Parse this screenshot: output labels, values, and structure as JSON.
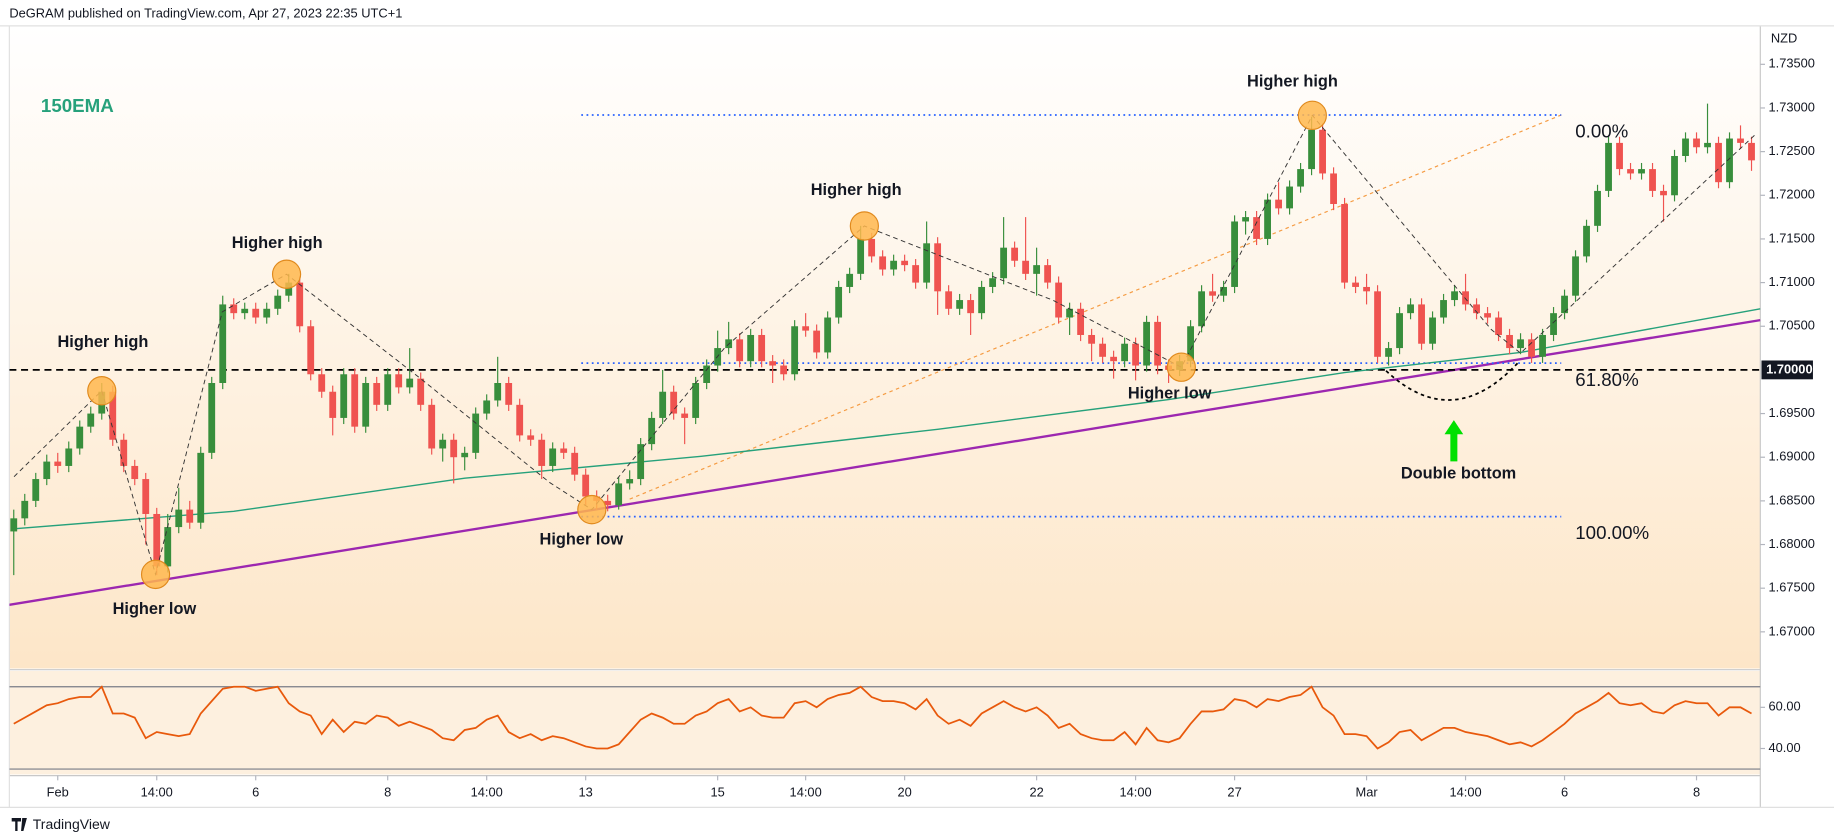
{
  "header": "DeGRAM published on TradingView.com, Apr 27, 2023 22:35 UTC+1",
  "logo": "TradingView",
  "chart_data": {
    "type": "candlestick",
    "yaxis_label": "NZD",
    "up_color": "#388e3c",
    "down_color": "#ef5350",
    "xlim": [
      -0.4,
      158.8
    ],
    "ylim": [
      1.6658,
      1.7394
    ],
    "yticks": [
      {
        "value": 1.67,
        "label": "1.67000"
      },
      {
        "value": 1.675,
        "label": "1.67500"
      },
      {
        "value": 1.68,
        "label": "1.68000"
      },
      {
        "value": 1.685,
        "label": "1.68500"
      },
      {
        "value": 1.69,
        "label": "1.69000"
      },
      {
        "value": 1.695,
        "label": "1.69500"
      },
      {
        "value": 1.705,
        "label": "1.70500"
      },
      {
        "value": 1.71,
        "label": "1.71000"
      },
      {
        "value": 1.715,
        "label": "1.71500"
      },
      {
        "value": 1.72,
        "label": "1.72000"
      },
      {
        "value": 1.725,
        "label": "1.72500"
      },
      {
        "value": 1.73,
        "label": "1.73000"
      },
      {
        "value": 1.735,
        "label": "1.73500"
      }
    ],
    "xticks": [
      {
        "value": 4,
        "label": "Feb"
      },
      {
        "value": 13,
        "label": "14:00"
      },
      {
        "value": 22,
        "label": "6"
      },
      {
        "value": 34,
        "label": "8"
      },
      {
        "value": 43,
        "label": "14:00"
      },
      {
        "value": 52,
        "label": "13"
      },
      {
        "value": 64,
        "label": "15"
      },
      {
        "value": 72,
        "label": "14:00"
      },
      {
        "value": 81,
        "label": "20"
      },
      {
        "value": 93,
        "label": "22"
      },
      {
        "value": 102,
        "label": "14:00"
      },
      {
        "value": 111,
        "label": "27"
      },
      {
        "value": 123,
        "label": "Mar"
      },
      {
        "value": 132,
        "label": "14:00"
      },
      {
        "value": 141,
        "label": "6"
      },
      {
        "value": 153,
        "label": "8"
      }
    ],
    "candles": [
      [
        1.6815,
        1.684,
        1.6765,
        1.683
      ],
      [
        1.683,
        1.6858,
        1.6822,
        1.685
      ],
      [
        1.685,
        1.6882,
        1.6843,
        1.6875
      ],
      [
        1.6875,
        1.6903,
        1.6868,
        1.6895
      ],
      [
        1.6895,
        1.6905,
        1.6882,
        1.689
      ],
      [
        1.689,
        1.6918,
        1.6883,
        1.691
      ],
      [
        1.691,
        1.6942,
        1.6903,
        1.6935
      ],
      [
        1.6935,
        1.6958,
        1.6928,
        1.695
      ],
      [
        1.695,
        1.6985,
        1.6943,
        1.6975
      ],
      [
        1.6975,
        1.6982,
        1.6913,
        1.692
      ],
      [
        1.692,
        1.6927,
        1.6883,
        1.689
      ],
      [
        1.689,
        1.6897,
        1.6868,
        1.6875
      ],
      [
        1.6875,
        1.6882,
        1.68,
        1.6835
      ],
      [
        1.6835,
        1.6842,
        1.6765,
        1.6775
      ],
      [
        1.6775,
        1.6835,
        1.6768,
        1.682
      ],
      [
        1.682,
        1.6865,
        1.6813,
        1.684
      ],
      [
        1.684,
        1.685,
        1.6818,
        1.6825
      ],
      [
        1.6825,
        1.6912,
        1.6818,
        1.6905
      ],
      [
        1.6905,
        1.6992,
        1.6898,
        1.6985
      ],
      [
        1.6985,
        1.7085,
        1.6978,
        1.7075
      ],
      [
        1.7075,
        1.7082,
        1.7058,
        1.7065
      ],
      [
        1.7065,
        1.7077,
        1.7058,
        1.707
      ],
      [
        1.707,
        1.7077,
        1.7053,
        1.706
      ],
      [
        1.706,
        1.7077,
        1.7053,
        1.707
      ],
      [
        1.707,
        1.7092,
        1.7063,
        1.7085
      ],
      [
        1.7085,
        1.711,
        1.7078,
        1.71
      ],
      [
        1.71,
        1.7107,
        1.7043,
        1.705
      ],
      [
        1.705,
        1.7057,
        1.6988,
        1.6995
      ],
      [
        1.6995,
        1.7002,
        1.6968,
        1.6975
      ],
      [
        1.6975,
        1.6982,
        1.6925,
        1.6945
      ],
      [
        1.6945,
        1.7002,
        1.6938,
        1.6995
      ],
      [
        1.6995,
        1.7002,
        1.6928,
        1.6935
      ],
      [
        1.6935,
        1.6992,
        1.6928,
        1.6985
      ],
      [
        1.6985,
        1.6992,
        1.6953,
        1.696
      ],
      [
        1.696,
        1.7002,
        1.6953,
        1.6995
      ],
      [
        1.6995,
        1.7002,
        1.6973,
        1.698
      ],
      [
        1.698,
        1.7025,
        1.6973,
        1.699
      ],
      [
        1.699,
        1.6997,
        1.6953,
        1.696
      ],
      [
        1.696,
        1.6967,
        1.6903,
        1.691
      ],
      [
        1.691,
        1.6927,
        1.6895,
        1.692
      ],
      [
        1.692,
        1.6927,
        1.687,
        1.69
      ],
      [
        1.69,
        1.6912,
        1.6885,
        1.6905
      ],
      [
        1.6905,
        1.6957,
        1.6898,
        1.695
      ],
      [
        1.695,
        1.6972,
        1.6943,
        1.6965
      ],
      [
        1.6965,
        1.7015,
        1.6958,
        1.6985
      ],
      [
        1.6985,
        1.6992,
        1.6953,
        1.696
      ],
      [
        1.696,
        1.6967,
        1.6918,
        1.6925
      ],
      [
        1.6925,
        1.6932,
        1.6913,
        1.692
      ],
      [
        1.692,
        1.6927,
        1.6875,
        1.689
      ],
      [
        1.689,
        1.6917,
        1.6883,
        1.691
      ],
      [
        1.691,
        1.6917,
        1.6898,
        1.6905
      ],
      [
        1.6905,
        1.6912,
        1.6873,
        1.688
      ],
      [
        1.688,
        1.6887,
        1.6845,
        1.6855
      ],
      [
        1.6855,
        1.6862,
        1.684,
        1.685
      ],
      [
        1.685,
        1.6857,
        1.6838,
        1.6845
      ],
      [
        1.6845,
        1.6877,
        1.684,
        1.687
      ],
      [
        1.687,
        1.6885,
        1.6863,
        1.6875
      ],
      [
        1.6875,
        1.6922,
        1.6868,
        1.6915
      ],
      [
        1.6915,
        1.6952,
        1.6908,
        1.6945
      ],
      [
        1.6945,
        1.7,
        1.6938,
        1.6975
      ],
      [
        1.6975,
        1.6982,
        1.6943,
        1.695
      ],
      [
        1.695,
        1.6957,
        1.6915,
        1.6945
      ],
      [
        1.6945,
        1.6992,
        1.6938,
        1.6985
      ],
      [
        1.6985,
        1.7012,
        1.6978,
        1.7005
      ],
      [
        1.7005,
        1.7045,
        1.6998,
        1.7025
      ],
      [
        1.7025,
        1.7055,
        1.7018,
        1.7035
      ],
      [
        1.7035,
        1.7042,
        1.7003,
        1.701
      ],
      [
        1.701,
        1.7047,
        1.7003,
        1.704
      ],
      [
        1.704,
        1.7047,
        1.7003,
        1.701
      ],
      [
        1.701,
        1.7017,
        1.6985,
        1.7005
      ],
      [
        1.7005,
        1.7012,
        1.6988,
        1.6995
      ],
      [
        1.6995,
        1.7057,
        1.6988,
        1.705
      ],
      [
        1.705,
        1.7065,
        1.7038,
        1.7045
      ],
      [
        1.7045,
        1.7052,
        1.7013,
        1.702
      ],
      [
        1.702,
        1.7067,
        1.7013,
        1.706
      ],
      [
        1.706,
        1.7102,
        1.7053,
        1.7095
      ],
      [
        1.7095,
        1.7117,
        1.7088,
        1.711
      ],
      [
        1.711,
        1.7165,
        1.7103,
        1.715
      ],
      [
        1.715,
        1.7157,
        1.7123,
        1.713
      ],
      [
        1.713,
        1.7137,
        1.7108,
        1.7115
      ],
      [
        1.7115,
        1.7132,
        1.7108,
        1.7125
      ],
      [
        1.7125,
        1.7132,
        1.7113,
        1.712
      ],
      [
        1.712,
        1.7127,
        1.7093,
        1.71
      ],
      [
        1.71,
        1.717,
        1.7093,
        1.7145
      ],
      [
        1.7145,
        1.7152,
        1.7063,
        1.709
      ],
      [
        1.709,
        1.7097,
        1.7063,
        1.707
      ],
      [
        1.707,
        1.7087,
        1.7063,
        1.708
      ],
      [
        1.708,
        1.7087,
        1.704,
        1.7065
      ],
      [
        1.7065,
        1.7102,
        1.7058,
        1.7095
      ],
      [
        1.7095,
        1.7112,
        1.7088,
        1.7105
      ],
      [
        1.7105,
        1.7175,
        1.7098,
        1.714
      ],
      [
        1.714,
        1.7147,
        1.7118,
        1.7125
      ],
      [
        1.7125,
        1.7175,
        1.7103,
        1.711
      ],
      [
        1.711,
        1.714,
        1.7085,
        1.712
      ],
      [
        1.712,
        1.7127,
        1.7093,
        1.71
      ],
      [
        1.71,
        1.7107,
        1.7053,
        1.706
      ],
      [
        1.706,
        1.7077,
        1.704,
        1.707
      ],
      [
        1.707,
        1.7077,
        1.7033,
        1.704
      ],
      [
        1.704,
        1.7047,
        1.701,
        1.703
      ],
      [
        1.703,
        1.7037,
        1.7008,
        1.7015
      ],
      [
        1.7015,
        1.7022,
        1.699,
        1.701
      ],
      [
        1.701,
        1.7037,
        1.7003,
        1.703
      ],
      [
        1.703,
        1.7037,
        1.6988,
        1.7005
      ],
      [
        1.7005,
        1.7062,
        1.6998,
        1.7055
      ],
      [
        1.7055,
        1.7062,
        1.6995,
        1.7005
      ],
      [
        1.7005,
        1.7012,
        1.6985,
        1.7
      ],
      [
        1.7,
        1.7017,
        1.6993,
        1.701
      ],
      [
        1.701,
        1.7057,
        1.7003,
        1.705
      ],
      [
        1.705,
        1.7097,
        1.7043,
        1.709
      ],
      [
        1.709,
        1.711,
        1.7078,
        1.7085
      ],
      [
        1.7085,
        1.7102,
        1.7078,
        1.7095
      ],
      [
        1.7095,
        1.7177,
        1.7088,
        1.717
      ],
      [
        1.717,
        1.7182,
        1.7155,
        1.7175
      ],
      [
        1.7175,
        1.7182,
        1.7143,
        1.715
      ],
      [
        1.715,
        1.7202,
        1.7143,
        1.7195
      ],
      [
        1.7195,
        1.7215,
        1.7178,
        1.7185
      ],
      [
        1.7185,
        1.7217,
        1.7178,
        1.721
      ],
      [
        1.721,
        1.7237,
        1.7203,
        1.723
      ],
      [
        1.723,
        1.729,
        1.7223,
        1.7275
      ],
      [
        1.7275,
        1.7282,
        1.7218,
        1.7225
      ],
      [
        1.7225,
        1.7232,
        1.7183,
        1.719
      ],
      [
        1.719,
        1.7197,
        1.7093,
        1.71
      ],
      [
        1.71,
        1.7107,
        1.7088,
        1.7095
      ],
      [
        1.7095,
        1.711,
        1.7075,
        1.709
      ],
      [
        1.709,
        1.7097,
        1.7008,
        1.7015
      ],
      [
        1.7015,
        1.7032,
        1.7005,
        1.7025
      ],
      [
        1.7025,
        1.7072,
        1.7018,
        1.7065
      ],
      [
        1.7065,
        1.7082,
        1.7058,
        1.7075
      ],
      [
        1.7075,
        1.7082,
        1.7023,
        1.703
      ],
      [
        1.703,
        1.7067,
        1.7023,
        1.706
      ],
      [
        1.706,
        1.7087,
        1.7053,
        1.708
      ],
      [
        1.708,
        1.7097,
        1.7073,
        1.709
      ],
      [
        1.709,
        1.711,
        1.7068,
        1.7075
      ],
      [
        1.7075,
        1.7082,
        1.7058,
        1.7065
      ],
      [
        1.7065,
        1.7072,
        1.7053,
        1.706
      ],
      [
        1.706,
        1.7067,
        1.7033,
        1.704
      ],
      [
        1.704,
        1.7047,
        1.7018,
        1.7025
      ],
      [
        1.7025,
        1.7042,
        1.7018,
        1.7035
      ],
      [
        1.7035,
        1.7042,
        1.7008,
        1.7015
      ],
      [
        1.7015,
        1.7047,
        1.7008,
        1.704
      ],
      [
        1.704,
        1.7072,
        1.7033,
        1.7065
      ],
      [
        1.7065,
        1.7092,
        1.7058,
        1.7085
      ],
      [
        1.7085,
        1.7137,
        1.7078,
        1.713
      ],
      [
        1.713,
        1.7172,
        1.7123,
        1.7165
      ],
      [
        1.7165,
        1.7212,
        1.7158,
        1.7205
      ],
      [
        1.7205,
        1.7267,
        1.7198,
        1.726
      ],
      [
        1.726,
        1.7267,
        1.7223,
        1.723
      ],
      [
        1.723,
        1.7237,
        1.7218,
        1.7225
      ],
      [
        1.7225,
        1.7237,
        1.7218,
        1.723
      ],
      [
        1.723,
        1.7237,
        1.7198,
        1.7205
      ],
      [
        1.7205,
        1.7212,
        1.717,
        1.72
      ],
      [
        1.72,
        1.7252,
        1.7193,
        1.7245
      ],
      [
        1.7245,
        1.7272,
        1.7238,
        1.7265
      ],
      [
        1.7265,
        1.7272,
        1.7248,
        1.7255
      ],
      [
        1.7255,
        1.7305,
        1.7248,
        1.726
      ],
      [
        1.726,
        1.7267,
        1.7208,
        1.7215
      ],
      [
        1.7215,
        1.7272,
        1.7208,
        1.7265
      ],
      [
        1.7265,
        1.728,
        1.7253,
        1.726
      ],
      [
        1.726,
        1.7267,
        1.7228,
        1.724
      ]
    ],
    "ema": {
      "name": "150EMA",
      "color": "#26a17b",
      "x": [
        0,
        20,
        41,
        62.5,
        84,
        105,
        121,
        137,
        158.8
      ],
      "values": [
        1.6818,
        1.6838,
        1.6876,
        1.6901,
        1.6932,
        1.6966,
        1.6997,
        1.702,
        1.707
      ]
    },
    "trendline": {
      "color": "#9c27b0",
      "x": [
        -0.4,
        158.8
      ],
      "values": [
        1.6731,
        1.7057
      ]
    },
    "fib_line": {
      "color": "#f59b42",
      "x": [
        56,
        140.7
      ],
      "values": [
        1.6852,
        1.7292
      ]
    },
    "levels": [
      {
        "value": 1.7,
        "label": "1.70000"
      }
    ],
    "fib": {
      "color": "#2962ff",
      "x": [
        51.6,
        140.7
      ],
      "high": 1.7292,
      "low": 1.6832,
      "ratios": [
        {
          "value": 0,
          "label": "0.00%"
        },
        {
          "value": 61.8,
          "label": "61.80%"
        },
        {
          "value": 100,
          "label": "100.00%"
        }
      ]
    },
    "annotations": [
      "Higher high",
      "Higher low",
      "Higher high",
      "Higher low",
      "Higher high",
      "Higher low",
      "Higher high",
      "Double bottom"
    ],
    "rsi": {
      "color": "#e8590c",
      "ylim": [
        27.4,
        77.7
      ],
      "yticks": [
        {
          "value": 60,
          "label": "60.00"
        },
        {
          "value": 40,
          "label": "40.00"
        }
      ],
      "bands": [
        70,
        30
      ],
      "values": [
        52,
        55,
        58,
        61,
        62,
        64,
        65,
        65,
        70,
        57,
        57,
        55,
        45,
        48,
        47,
        46,
        47,
        57,
        63,
        69,
        70,
        70,
        68,
        69,
        70,
        62,
        58,
        56,
        47,
        54,
        48,
        53,
        52,
        56,
        55,
        51,
        53,
        51,
        49,
        45,
        44,
        49,
        50,
        54,
        56,
        48,
        45,
        47,
        44,
        46,
        45,
        43,
        41,
        40,
        40,
        42,
        48,
        54,
        57,
        55,
        52,
        52,
        56,
        58,
        62,
        64,
        58,
        60,
        56,
        55,
        55,
        62,
        63,
        60,
        64,
        66,
        67,
        70,
        65,
        63,
        63,
        62,
        59,
        64,
        56,
        52,
        54,
        51,
        57,
        60,
        63,
        60,
        58,
        60,
        56,
        50,
        52,
        47,
        45,
        44,
        44,
        48,
        42,
        50,
        44,
        43,
        45,
        52,
        58,
        58,
        59,
        64,
        63,
        60,
        64,
        63,
        65,
        66,
        70,
        60,
        56,
        47,
        47,
        46,
        40,
        43,
        48,
        49,
        44,
        47,
        50,
        50,
        48,
        47,
        46,
        44,
        42,
        43,
        41,
        44,
        48,
        52,
        57,
        60,
        63,
        67,
        62,
        61,
        62,
        58,
        57,
        61,
        63,
        62,
        62,
        56,
        60,
        60,
        57
      ]
    }
  }
}
